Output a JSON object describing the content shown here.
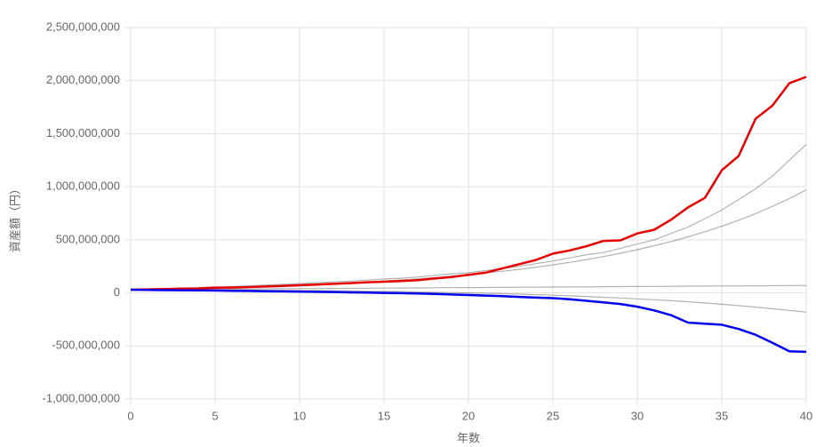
{
  "chart_data": {
    "type": "line",
    "xlabel": "年数",
    "ylabel": "資産額（円）",
    "x": [
      0,
      1,
      2,
      3,
      4,
      5,
      6,
      7,
      8,
      9,
      10,
      11,
      12,
      13,
      14,
      15,
      16,
      17,
      18,
      19,
      20,
      21,
      22,
      23,
      24,
      25,
      26,
      27,
      28,
      29,
      30,
      31,
      32,
      33,
      34,
      35,
      36,
      37,
      38,
      39,
      40
    ],
    "xlim": [
      0,
      40
    ],
    "xticks": [
      0,
      5,
      10,
      15,
      20,
      25,
      30,
      35,
      40
    ],
    "ylim": [
      -1000000000,
      2500000000
    ],
    "yticks": [
      {
        "value": -1000000000,
        "label": "-1,000,000,000"
      },
      {
        "value": -500000000,
        "label": "-500,000,000"
      },
      0,
      {
        "value": 500000000,
        "label": "500,000,000"
      },
      {
        "value": 1000000000,
        "label": "1,000,000,000"
      },
      {
        "value": 1500000000,
        "label": "1,500,000,000"
      },
      {
        "value": 2000000000,
        "label": "2,000,000,000"
      },
      {
        "value": 2500000000,
        "label": "2,500,000,000"
      }
    ],
    "grid": true,
    "series": [
      {
        "color": "rgba(0,0,0,0.3)",
        "values": [
          30000000,
          33000000,
          36000000,
          40000000,
          44000000,
          48000000,
          52000000,
          57000000,
          62000000,
          68000000,
          74000000,
          80000000,
          87000000,
          95000000,
          103000000,
          112000000,
          122000000,
          133000000,
          145000000,
          158000000,
          172000000,
          187000000,
          204000000,
          222000000,
          242000000,
          264000000,
          288000000,
          314000000,
          342000000,
          373000000,
          407000000,
          444000000,
          484000000,
          528000000,
          576000000,
          628000000,
          685000000,
          747000000,
          815000000,
          889000000,
          970000000
        ]
      },
      {
        "color": "rgba(0,0,0,0.3)",
        "values": [
          30000000,
          31000000,
          32000000,
          33000000,
          34000000,
          35000000,
          36000000,
          37000000,
          38000000,
          39000000,
          40000000,
          41000000,
          42000000,
          43000000,
          44000000,
          45000000,
          46000000,
          47000000,
          48000000,
          49000000,
          50000000,
          51000000,
          52000000,
          53000000,
          54000000,
          55000000,
          56000000,
          57000000,
          58000000,
          59000000,
          60000000,
          61000000,
          62000000,
          63000000,
          64000000,
          65000000,
          66000000,
          67000000,
          68000000,
          69000000,
          70000000
        ]
      },
      {
        "color": "rgba(0,0,0,0.3)",
        "values": [
          30000000,
          30000000,
          29000000,
          29000000,
          28000000,
          28000000,
          27000000,
          26000000,
          25000000,
          24000000,
          23000000,
          22000000,
          20000000,
          18000000,
          16000000,
          14000000,
          12000000,
          9000000,
          6000000,
          3000000,
          0,
          -4000000,
          -8000000,
          -12000000,
          -17000000,
          -22000000,
          -28000000,
          -34000000,
          -41000000,
          -48000000,
          -56000000,
          -65000000,
          -74000000,
          -84000000,
          -95000000,
          -107000000,
          -120000000,
          -134000000,
          -149000000,
          -165000000,
          -182000000
        ]
      },
      {
        "color": "rgba(0,0,0,0.3)",
        "values": [
          30000000,
          34000000,
          39000000,
          44000000,
          50000000,
          56000000,
          60000000,
          66000000,
          74000000,
          80000000,
          88000000,
          96000000,
          104000000,
          110000000,
          120000000,
          130000000,
          138000000,
          150000000,
          165000000,
          180000000,
          190000000,
          210000000,
          230000000,
          250000000,
          275000000,
          300000000,
          330000000,
          360000000,
          380000000,
          420000000,
          460000000,
          500000000,
          560000000,
          620000000,
          700000000,
          780000000,
          880000000,
          980000000,
          1100000000,
          1250000000,
          1400000000
        ]
      },
      {
        "color": "#e60000",
        "values": [
          30000000,
          33000000,
          37000000,
          40000000,
          42000000,
          48000000,
          50000000,
          55000000,
          60000000,
          65000000,
          72000000,
          78000000,
          85000000,
          92000000,
          100000000,
          105000000,
          112000000,
          120000000,
          135000000,
          150000000,
          170000000,
          190000000,
          230000000,
          270000000,
          310000000,
          370000000,
          400000000,
          440000000,
          490000000,
          495000000,
          560000000,
          595000000,
          690000000,
          805000000,
          895000000,
          1155000000,
          1290000000,
          1640000000,
          1765000000,
          1975000000,
          2035000000
        ]
      },
      {
        "color": "#0000ee",
        "values": [
          30000000,
          28000000,
          26000000,
          25000000,
          24000000,
          22000000,
          20000000,
          18000000,
          16000000,
          14000000,
          12000000,
          10000000,
          8000000,
          5000000,
          2000000,
          0,
          -3000000,
          -6000000,
          -10000000,
          -15000000,
          -20000000,
          -25000000,
          -30000000,
          -38000000,
          -45000000,
          -50000000,
          -60000000,
          -75000000,
          -90000000,
          -105000000,
          -130000000,
          -165000000,
          -210000000,
          -280000000,
          -290000000,
          -300000000,
          -340000000,
          -395000000,
          -470000000,
          -550000000,
          -555000000
        ]
      }
    ]
  }
}
